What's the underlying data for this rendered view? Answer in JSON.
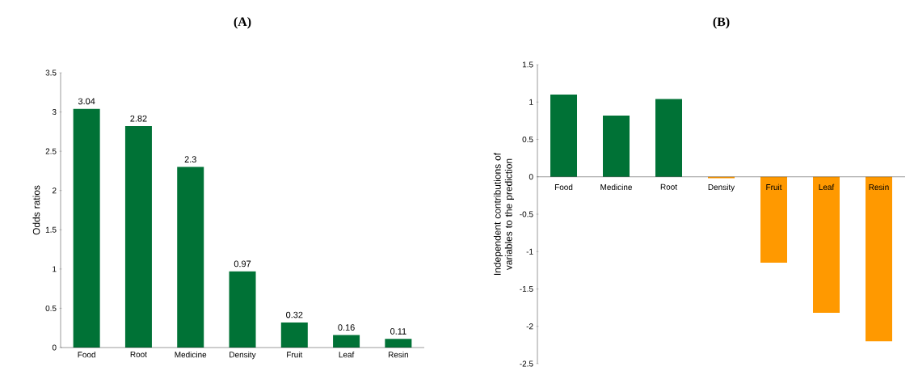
{
  "chart_data": [
    {
      "type": "bar",
      "title": "(A)",
      "ylabel": "Odds ratios",
      "categories": [
        "Food",
        "Root",
        "Medicine",
        "Density",
        "Fruit",
        "Leaf",
        "Resin"
      ],
      "values": [
        3.04,
        2.82,
        2.3,
        0.97,
        0.32,
        0.16,
        0.11
      ],
      "colors": [
        "#007236",
        "#007236",
        "#007236",
        "#007236",
        "#007236",
        "#007236",
        "#007236"
      ],
      "ylim": [
        0,
        3.5
      ],
      "yticks": [
        0,
        0.5,
        1,
        1.5,
        2,
        2.5,
        3,
        3.5
      ],
      "data_labels": true,
      "grid": false
    },
    {
      "type": "bar",
      "title": "(B)",
      "ylabel": "Independent contributions of variables to the prediction",
      "categories": [
        "Food",
        "Medicine",
        "Root",
        "Density",
        "Fruit",
        "Leaf",
        "Resin"
      ],
      "values": [
        1.1,
        0.82,
        1.04,
        -0.02,
        -1.15,
        -1.82,
        -2.2
      ],
      "colors": [
        "#007236",
        "#007236",
        "#007236",
        "#ff9900",
        "#ff9900",
        "#ff9900",
        "#ff9900"
      ],
      "ylim": [
        -2.5,
        1.5
      ],
      "yticks": [
        -2.5,
        -2,
        -1.5,
        -1,
        -0.5,
        0,
        0.5,
        1,
        1.5
      ],
      "grid": false
    }
  ]
}
